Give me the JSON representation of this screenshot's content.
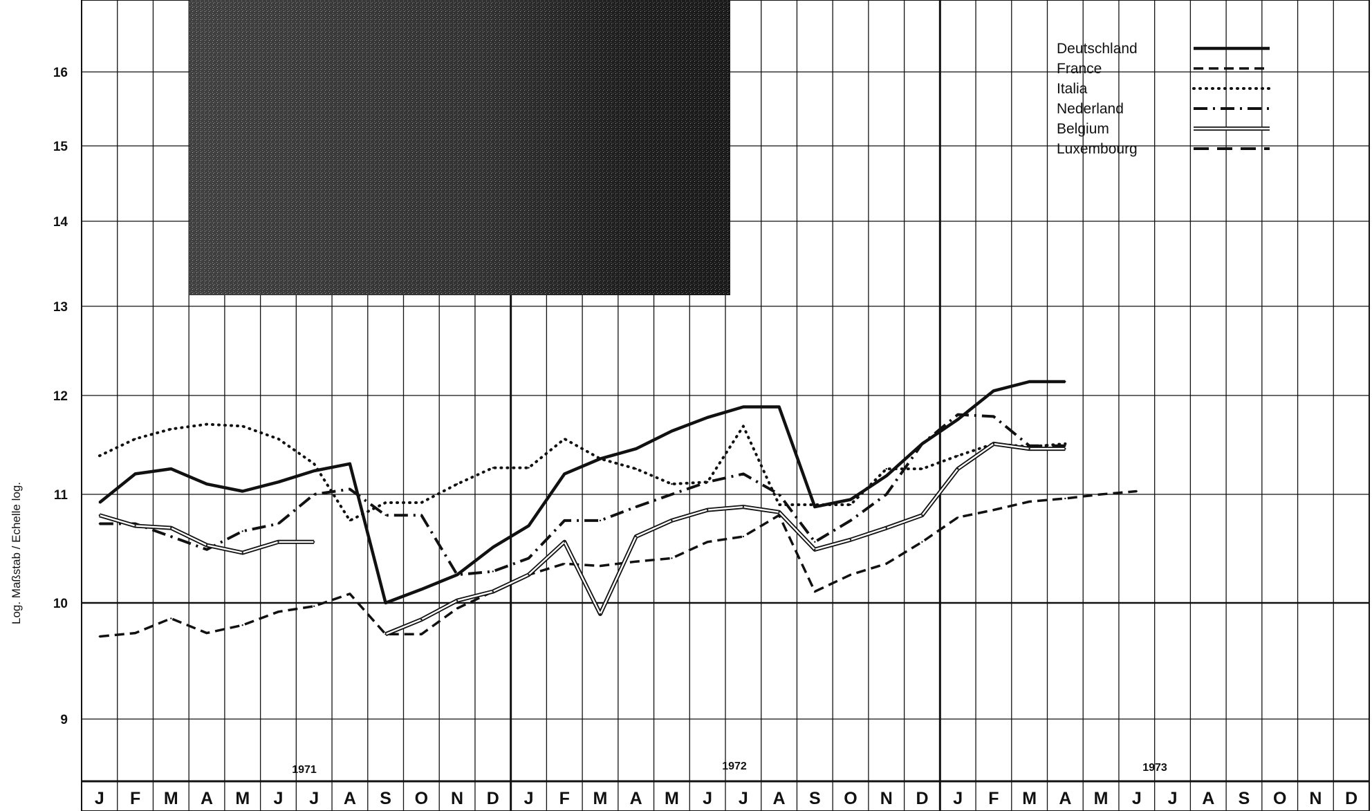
{
  "chart_data": {
    "type": "line",
    "ylabel": "Log. Maßstab  /  Echelle log.",
    "y_scale": "log",
    "y_ticks": [
      9,
      10,
      11,
      12,
      13,
      14,
      15,
      16
    ],
    "month_labels": [
      "J",
      "F",
      "M",
      "A",
      "M",
      "J",
      "J",
      "A",
      "S",
      "O",
      "N",
      "D",
      "J",
      "F",
      "M",
      "A",
      "M",
      "J",
      "J",
      "A",
      "S",
      "O",
      "N",
      "D",
      "J",
      "F",
      "M",
      "A",
      "M",
      "J",
      "J",
      "A",
      "S",
      "O",
      "N",
      "D"
    ],
    "year_labels": [
      "1971",
      "1972",
      "1973"
    ],
    "grid": true,
    "legend_position": "top-right",
    "series": [
      {
        "name": "Deutschland",
        "style": "solid",
        "values": [
          10.92,
          11.2,
          11.25,
          11.1,
          11.03,
          11.12,
          11.23,
          11.3,
          10.0,
          10.12,
          10.25,
          10.5,
          10.7,
          11.2,
          11.35,
          11.45,
          11.63,
          11.77,
          11.88,
          11.88,
          10.88,
          10.95,
          11.18,
          11.5,
          11.75,
          12.05,
          12.15,
          12.15
        ]
      },
      {
        "name": "France",
        "style": "dashed",
        "values": [
          9.7,
          9.73,
          9.86,
          9.73,
          9.8,
          9.92,
          9.97,
          10.08,
          9.72,
          9.72,
          9.95,
          10.1,
          10.25,
          10.35,
          10.33,
          10.37,
          10.4,
          10.55,
          10.6,
          10.8,
          10.1,
          10.25,
          10.35,
          10.55,
          10.78,
          10.85,
          10.93,
          10.96,
          11.0,
          11.03
        ]
      },
      {
        "name": "Italia",
        "style": "dotted",
        "values": [
          11.38,
          11.55,
          11.65,
          11.7,
          11.68,
          11.55,
          11.3,
          10.75,
          10.92,
          10.92,
          11.1,
          11.26,
          11.26,
          11.55,
          11.35,
          11.25,
          11.1,
          11.12,
          11.68,
          10.9,
          10.9,
          10.9,
          11.25,
          11.25,
          11.38,
          11.5,
          11.47,
          11.5
        ]
      },
      {
        "name": "Nederland",
        "style": "dash-dot",
        "values": [
          10.72,
          10.72,
          10.6,
          10.48,
          10.65,
          10.72,
          11.0,
          11.05,
          10.8,
          10.8,
          10.25,
          10.28,
          10.4,
          10.75,
          10.75,
          10.88,
          11.0,
          11.12,
          11.2,
          11.0,
          10.55,
          10.75,
          11.0,
          11.5,
          11.8,
          11.78,
          11.48,
          11.48
        ]
      },
      {
        "name": "Belgium",
        "style": "double",
        "values": [
          10.8,
          10.7,
          10.68,
          10.52,
          10.45,
          10.55,
          10.55,
          null,
          9.72,
          9.85,
          10.02,
          10.1,
          10.25,
          10.55,
          9.9,
          10.6,
          10.75,
          10.85,
          10.88,
          10.83,
          10.48,
          10.57,
          10.68,
          10.8,
          11.25,
          11.5,
          11.45,
          11.45
        ]
      },
      {
        "name": "Luxembourg",
        "style": "long-dash",
        "values": []
      }
    ]
  }
}
